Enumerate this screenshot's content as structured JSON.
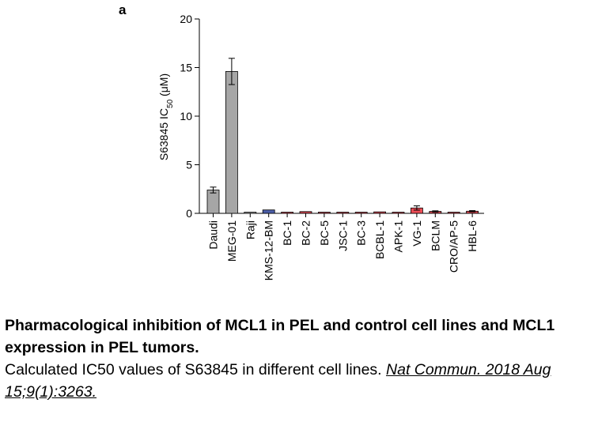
{
  "panel_label": "a",
  "chart_data": {
    "type": "bar",
    "ylabel_main": "S63845 IC",
    "ylabel_sub": "50",
    "ylabel_unit": " (μM)",
    "ylim": [
      0,
      20
    ],
    "yticks": [
      "0",
      "5",
      "10",
      "15",
      "20"
    ],
    "categories": [
      "Daudi",
      "MEG-01",
      "Raji",
      "KMS-12-BM",
      "BC-1",
      "BC-2",
      "BC-5",
      "JSC-1",
      "BC-3",
      "BCBL-1",
      "APK-1",
      "VG-1",
      "BCLM",
      "CRO/AP-5",
      "HBL-6"
    ],
    "values": [
      2.4,
      14.6,
      0.05,
      0.35,
      0.08,
      0.18,
      0.08,
      0.05,
      0.1,
      0.15,
      0.1,
      0.55,
      0.2,
      0.05,
      0.22
    ],
    "errors": [
      0.3,
      1.35,
      0,
      0,
      0,
      0,
      0,
      0,
      0,
      0,
      0,
      0.22,
      0.06,
      0,
      0.06
    ],
    "colors": [
      "#a6a6a6",
      "#a6a6a6",
      "#a6a6a6",
      "#4b5ea8",
      "#d6454f",
      "#d6454f",
      "#d6454f",
      "#d6454f",
      "#d6454f",
      "#d6454f",
      "#d6454f",
      "#ec4c55",
      "#d6454f",
      "#d6454f",
      "#d6454f"
    ]
  },
  "caption": {
    "title": "Pharmacological inhibition of MCL1 in PEL and control cell lines and MCL1 expression in PEL tumors.",
    "body": "Calculated IC50 values of S63845 in different cell lines. ",
    "citation": "Nat Commun. 2018 Aug 15;9(1):3263."
  }
}
